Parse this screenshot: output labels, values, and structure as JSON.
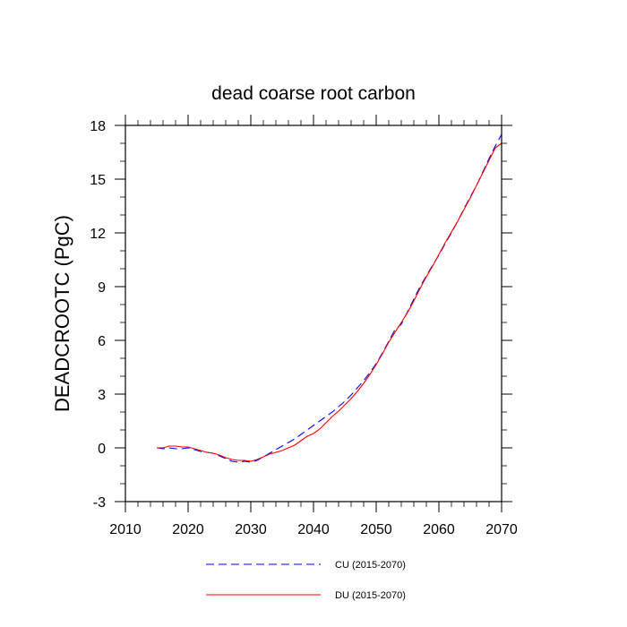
{
  "chart_data": {
    "type": "line",
    "title": "dead coarse root carbon",
    "xlabel": "",
    "ylabel": "DEADCROOTC  (PgC)",
    "xlim": [
      2010,
      2070
    ],
    "ylim": [
      -3,
      18
    ],
    "xticks": [
      2010,
      2020,
      2030,
      2040,
      2050,
      2060,
      2070
    ],
    "yticks": [
      -3,
      0,
      3,
      6,
      9,
      12,
      15,
      18
    ],
    "grid": false,
    "legend_position": "bottom",
    "series": [
      {
        "name": "CU (2015-2070)",
        "color": "#0000ff",
        "dash": "dashed",
        "x": [
          2015,
          2016,
          2017,
          2018,
          2019,
          2020,
          2021,
          2022,
          2023,
          2024,
          2025,
          2026,
          2027,
          2028,
          2029,
          2030,
          2031,
          2032,
          2033,
          2034,
          2035,
          2036,
          2037,
          2038,
          2039,
          2040,
          2041,
          2042,
          2043,
          2044,
          2045,
          2046,
          2047,
          2048,
          2049,
          2050,
          2051,
          2052,
          2053,
          2054,
          2055,
          2056,
          2057,
          2058,
          2059,
          2060,
          2061,
          2062,
          2063,
          2064,
          2065,
          2066,
          2067,
          2068,
          2069,
          2070
        ],
        "y": [
          0.0,
          -0.05,
          0.0,
          -0.05,
          -0.05,
          0.0,
          -0.1,
          -0.2,
          -0.25,
          -0.3,
          -0.45,
          -0.6,
          -0.75,
          -0.8,
          -0.75,
          -0.8,
          -0.7,
          -0.5,
          -0.3,
          -0.1,
          0.1,
          0.3,
          0.5,
          0.75,
          1.0,
          1.25,
          1.5,
          1.75,
          2.0,
          2.3,
          2.6,
          2.95,
          3.35,
          3.75,
          4.2,
          4.7,
          5.3,
          5.95,
          6.6,
          6.9,
          7.6,
          8.3,
          9.0,
          9.6,
          10.2,
          10.75,
          11.4,
          12.0,
          12.65,
          13.35,
          14.0,
          14.65,
          15.4,
          16.15,
          16.85,
          17.5
        ]
      },
      {
        "name": "DU (2015-2070)",
        "color": "#ff0000",
        "dash": "solid",
        "x": [
          2015,
          2016,
          2017,
          2018,
          2019,
          2020,
          2021,
          2022,
          2023,
          2024,
          2025,
          2026,
          2027,
          2028,
          2029,
          2030,
          2031,
          2032,
          2033,
          2034,
          2035,
          2036,
          2037,
          2038,
          2039,
          2040,
          2041,
          2042,
          2043,
          2044,
          2045,
          2046,
          2047,
          2048,
          2049,
          2050,
          2051,
          2052,
          2053,
          2054,
          2055,
          2056,
          2057,
          2058,
          2059,
          2060,
          2061,
          2062,
          2063,
          2064,
          2065,
          2066,
          2067,
          2068,
          2069,
          2070
        ],
        "y": [
          0.0,
          0.0,
          0.1,
          0.1,
          0.05,
          0.05,
          -0.05,
          -0.15,
          -0.25,
          -0.3,
          -0.4,
          -0.55,
          -0.65,
          -0.7,
          -0.7,
          -0.75,
          -0.65,
          -0.5,
          -0.35,
          -0.25,
          -0.15,
          0.0,
          0.15,
          0.4,
          0.65,
          0.8,
          1.05,
          1.4,
          1.75,
          2.05,
          2.4,
          2.75,
          3.15,
          3.6,
          4.1,
          4.65,
          5.25,
          5.9,
          6.45,
          7.0,
          7.55,
          8.2,
          8.9,
          9.55,
          10.15,
          10.8,
          11.45,
          12.05,
          12.65,
          13.3,
          13.95,
          14.65,
          15.35,
          16.05,
          16.75,
          17.0
        ]
      }
    ]
  }
}
